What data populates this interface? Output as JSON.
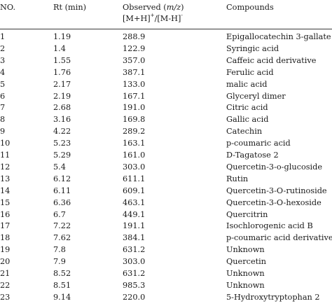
{
  "table": {
    "headers": {
      "no": "NO.",
      "rt": "Rt (min)",
      "observed_line1_prefix": "Observed (",
      "observed_italic": "m/z",
      "observed_line1_suffix": ")",
      "observed_line2_a": "[M+H]",
      "observed_line2_sup_a": "+",
      "observed_line2_b": "/[M-H]",
      "observed_line2_sup_b": "-",
      "compounds": "Compounds"
    },
    "rows": [
      {
        "no": "1",
        "rt": "1.19",
        "mz": "288.9",
        "compound": "Epigallocatechin 3-gallate"
      },
      {
        "no": "2",
        "rt": "1.4",
        "mz": "122.9",
        "compound": "Syringic acid"
      },
      {
        "no": "3",
        "rt": "1.55",
        "mz": "357.0",
        "compound": "Caffeic acid derivative"
      },
      {
        "no": "4",
        "rt": "1.76",
        "mz": "387.1",
        "compound": "Ferulic acid"
      },
      {
        "no": "5",
        "rt": "2.17",
        "mz": "133.0",
        "compound": "malic acid"
      },
      {
        "no": "6",
        "rt": "2.19",
        "mz": "167.1",
        "compound": "Glyceryl dimer"
      },
      {
        "no": "7",
        "rt": "2.68",
        "mz": "191.0",
        "compound": "Citric acid"
      },
      {
        "no": "8",
        "rt": "3.16",
        "mz": "169.8",
        "compound": "Gallic acid"
      },
      {
        "no": "9",
        "rt": "4.22",
        "mz": "289.2",
        "compound": "Catechin"
      },
      {
        "no": "10",
        "rt": "5.23",
        "mz": "163.1",
        "compound": "p-coumaric acid"
      },
      {
        "no": "11",
        "rt": "5.29",
        "mz": "161.0",
        "compound": "D-Tagatose 2"
      },
      {
        "no": "12",
        "rt": "5.4",
        "mz": "303.0",
        "compound": "Quercetin-3-o-glucoside"
      },
      {
        "no": "13",
        "rt": "6.12",
        "mz": "611.1",
        "compound": "Rutin"
      },
      {
        "no": "14",
        "rt": "6.11",
        "mz": "609.1",
        "compound": "Quercetin-3-O-rutinoside"
      },
      {
        "no": "15",
        "rt": "6.36",
        "mz": "463.1",
        "compound": "Quercetin-3-O-hexoside"
      },
      {
        "no": "16",
        "rt": "6.7",
        "mz": "449.1",
        "compound": "Quercitrin"
      },
      {
        "no": "17",
        "rt": "7.22",
        "mz": "191.1",
        "compound": "Isochlorogenic acid B"
      },
      {
        "no": "18",
        "rt": "7.62",
        "mz": "384.1",
        "compound": "p-coumaric acid derivative"
      },
      {
        "no": "19",
        "rt": "7.8",
        "mz": "631.2",
        "compound": "Unknown"
      },
      {
        "no": "20",
        "rt": "7.9",
        "mz": "303.0",
        "compound": "Quercetin"
      },
      {
        "no": "21",
        "rt": "8.52",
        "mz": "631.2",
        "compound": "Unknown"
      },
      {
        "no": "22",
        "rt": "8.51",
        "mz": "985.3",
        "compound": "Unknown"
      },
      {
        "no": "23",
        "rt": "9.14",
        "mz": "220.0",
        "compound": "5-Hydroxytryptophan 2"
      }
    ]
  }
}
